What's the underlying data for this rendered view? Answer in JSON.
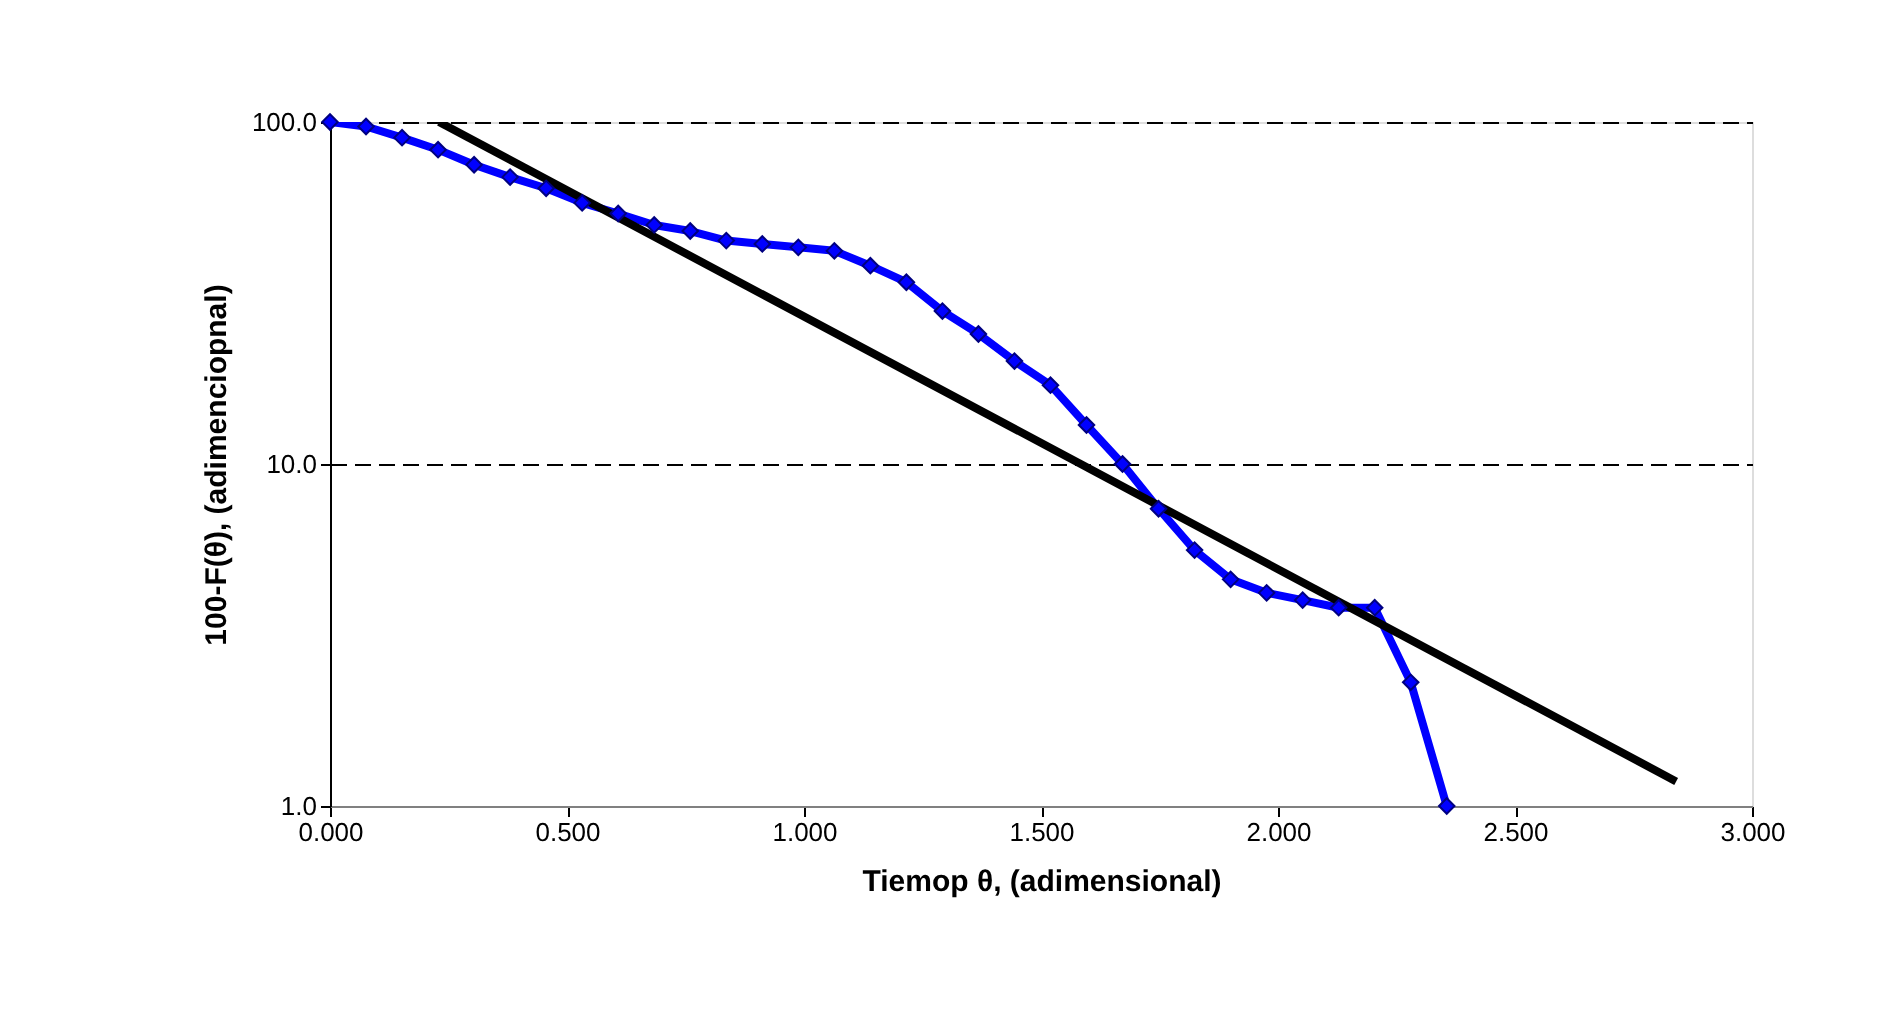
{
  "chart_data": {
    "type": "line",
    "xlabel": "Tiemop θ, (adimensional)",
    "ylabel": "100-F(θ), (adimenciopnal)",
    "xlim": [
      0,
      3
    ],
    "ylim": [
      1,
      100
    ],
    "log": "y",
    "grid": "y",
    "line_style": "solid",
    "xticks": [
      {
        "value": 0,
        "label": "0.000"
      },
      {
        "value": 0.5,
        "label": "0.500"
      },
      {
        "value": 1,
        "label": "1.000"
      },
      {
        "value": 1.5,
        "label": "1.500"
      },
      {
        "value": 2,
        "label": "2.000"
      },
      {
        "value": 2.5,
        "label": "2.500"
      },
      {
        "value": 3,
        "label": "3.000"
      }
    ],
    "yticks": [
      {
        "value": 1,
        "label": "1.0"
      },
      {
        "value": 10,
        "label": "10.0"
      },
      {
        "value": 100,
        "label": "100.0"
      }
    ],
    "series": [
      {
        "color": "#0000ff",
        "marker": "diamond",
        "x": [
          0,
          0.076,
          0.152,
          0.228,
          0.304,
          0.38,
          0.456,
          0.532,
          0.608,
          0.684,
          0.76,
          0.836,
          0.912,
          0.988,
          1.064,
          1.14,
          1.216,
          1.292,
          1.368,
          1.444,
          1.52,
          1.596,
          1.672,
          1.748,
          1.824,
          1.9,
          1.976,
          2.052,
          2.128,
          2.204,
          2.28,
          2.356
        ],
        "values": [
          100,
          97,
          90,
          83,
          75,
          69,
          64,
          58,
          54,
          50,
          48,
          45,
          44,
          43,
          42,
          38,
          34,
          28,
          24,
          20,
          17,
          13,
          10,
          7.4,
          5.6,
          4.6,
          4.2,
          4.0,
          3.8,
          3.8,
          2.3,
          1.0
        ]
      },
      {
        "color": "#000000",
        "marker": "none",
        "x": [
          0.23,
          2.84
        ],
        "values": [
          100,
          1.18
        ]
      }
    ]
  }
}
